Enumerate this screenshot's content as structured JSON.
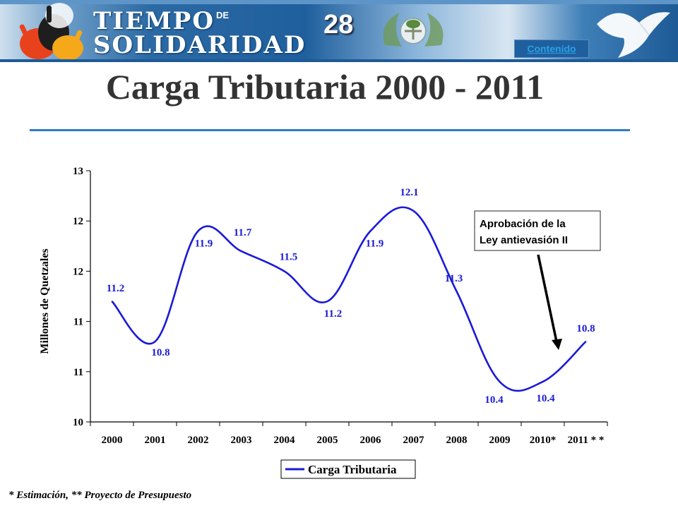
{
  "header": {
    "brand_line1": "TIEMPO",
    "brand_de": "DE",
    "brand_line2": "SOLIDARIDAD",
    "slide_number": "28",
    "contenido_link": "Contenido",
    "colors": {
      "banner": "#1f5f9d",
      "link": "#2aa0e6"
    },
    "icons": [
      "hands-logo-icon",
      "coat-of-arms-icon",
      "dove-icon"
    ]
  },
  "slide": {
    "title": "Carga Tributaria 2000 - 2011",
    "footnote": "* Estimación,  ** Proyecto de Presupuesto"
  },
  "chart_data": {
    "type": "line",
    "categories": [
      "2000",
      "2001",
      "2002",
      "2003",
      "2004",
      "2005",
      "2006",
      "2007",
      "2008",
      "2009",
      "2010*",
      "2011**"
    ],
    "x_tick_labels": [
      "2000",
      "2001",
      "2002",
      "2003",
      "2004",
      "2005",
      "2006",
      "2007",
      "2008",
      "2009",
      "2010*",
      "2011 * *"
    ],
    "ylabel": "Millones de Quetzales",
    "xlabel": "",
    "y_tick_values": [
      10,
      10.5,
      11,
      11.5,
      12,
      12.5,
      13
    ],
    "y_tick_labels": [
      "10",
      "11",
      "11",
      "12",
      "12",
      "13"
    ],
    "ylim": [
      10,
      12.5
    ],
    "grid": false,
    "legend_position": "bottom",
    "series": [
      {
        "name": "Carga Tributaria",
        "color": "#1a1ad6",
        "values": [
          11.2,
          10.8,
          11.9,
          11.7,
          11.5,
          11.2,
          11.9,
          12.1,
          11.3,
          10.4,
          10.4,
          10.8
        ],
        "labels": [
          "11.2",
          "10.8",
          "11.9",
          "11.7",
          "11.5",
          "11.2",
          "11.9",
          "12.1",
          "11.3",
          "10.4",
          "10.4",
          "10.8"
        ]
      }
    ],
    "annotation": {
      "text_line1": "Aprobación de la",
      "text_line2": "Ley antievasión II",
      "points_to": "2011**"
    }
  }
}
